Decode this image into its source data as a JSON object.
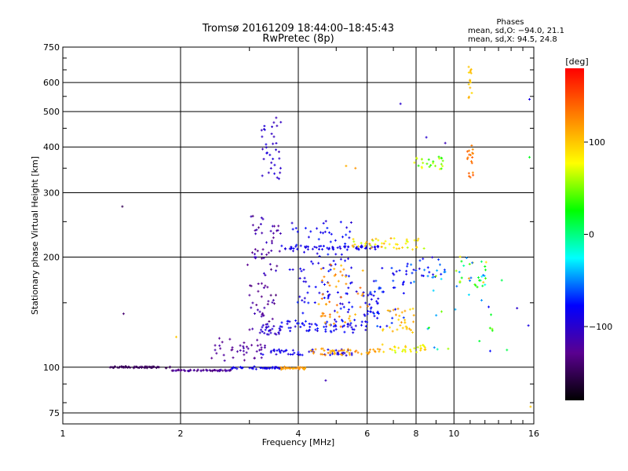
{
  "chart_data": {
    "type": "scatter",
    "title": "Tromsø 20161209 18:44:00–18:45:43",
    "subtitle": "RwPretec (8p)",
    "xlabel": "Frequency [MHz]",
    "ylabel": "Stationary phase Virtual Height [km]",
    "x_scale": "log",
    "y_scale": "log",
    "xlim": [
      1,
      16
    ],
    "ylim": [
      70,
      750
    ],
    "x_ticks": [
      1,
      2,
      4,
      6,
      8,
      10,
      16
    ],
    "x_tick_labels": [
      "1",
      "2",
      "4",
      "6",
      "8",
      "10",
      "16"
    ],
    "y_ticks": [
      75,
      100,
      200,
      300,
      400,
      500,
      600,
      750
    ],
    "y_tick_labels": [
      "75",
      "100",
      "200",
      "300",
      "400",
      "500",
      "600",
      "750"
    ],
    "grid": true,
    "stats": {
      "heading": "Phases",
      "line_o": "mean, sd,O: −94.0, 21.1",
      "line_x": "mean, sd,X:  94.5, 24.8"
    },
    "colorbar": {
      "label": "[deg]",
      "range": [
        -180,
        180
      ],
      "ticks": [
        100,
        0,
        -100
      ],
      "tick_labels": [
        "100",
        "0",
        "−100"
      ],
      "colors": [
        "#000000",
        "#5a0090",
        "#0000ff",
        "#00ffff",
        "#00ff00",
        "#ffff00",
        "#ff8000",
        "#ff0000"
      ]
    },
    "traces": [
      {
        "f": [
          1.3,
          1.9
        ],
        "h": [
          100,
          100
        ],
        "phase": [
          -145,
          -150
        ],
        "n": 70,
        "spread": 0.01
      },
      {
        "f": [
          1.9,
          2.7
        ],
        "h": [
          98,
          98
        ],
        "phase": [
          -140,
          -110
        ],
        "n": 60,
        "spread": 0.008
      },
      {
        "f": [
          2.7,
          3.6
        ],
        "h": [
          99,
          100
        ],
        "phase": [
          -95,
          -80
        ],
        "n": 40,
        "spread": 0.01
      },
      {
        "f": [
          3.6,
          4.2
        ],
        "h": [
          99,
          100
        ],
        "phase": [
          110,
          125
        ],
        "n": 30,
        "spread": 0.01
      },
      {
        "f": [
          2.4,
          3.3
        ],
        "h": [
          105,
          120
        ],
        "phase": [
          -130,
          -115
        ],
        "n": 40,
        "spread": 0.02
      },
      {
        "f": [
          3.0,
          3.5
        ],
        "h": [
          125,
          170
        ],
        "phase": [
          -140,
          -110
        ],
        "n": 35,
        "spread": 0.03
      },
      {
        "f": [
          3.2,
          3.6
        ],
        "h": [
          120,
          130
        ],
        "phase": [
          -110,
          -90
        ],
        "n": 25,
        "spread": 0.02
      },
      {
        "f": [
          3.0,
          3.6
        ],
        "h": [
          180,
          260
        ],
        "phase": [
          -140,
          -100
        ],
        "n": 45,
        "spread": 0.04
      },
      {
        "f": [
          3.2,
          3.6
        ],
        "h": [
          330,
          480
        ],
        "phase": [
          -110,
          -90
        ],
        "n": 35,
        "spread": 0.03
      },
      {
        "f": [
          3.6,
          6.0
        ],
        "h": [
          125,
          135
        ],
        "phase": [
          -100,
          -70
        ],
        "n": 70,
        "spread": 0.015
      },
      {
        "f": [
          4.0,
          6.5
        ],
        "h": [
          140,
          160
        ],
        "phase": [
          -100,
          -70
        ],
        "n": 50,
        "spread": 0.03
      },
      {
        "f": [
          3.8,
          5.5
        ],
        "h": [
          160,
          250
        ],
        "phase": [
          -100,
          -70
        ],
        "n": 70,
        "spread": 0.05
      },
      {
        "f": [
          3.6,
          6.5
        ],
        "h": [
          210,
          215
        ],
        "phase": [
          -95,
          -80
        ],
        "n": 60,
        "spread": 0.01
      },
      {
        "f": [
          3.1,
          5.5
        ],
        "h": [
          108,
          112
        ],
        "phase": [
          -100,
          -80
        ],
        "n": 50,
        "spread": 0.01
      },
      {
        "f": [
          4.3,
          6.5
        ],
        "h": [
          108,
          112
        ],
        "phase": [
          105,
          130
        ],
        "n": 45,
        "spread": 0.01
      },
      {
        "f": [
          6.5,
          8.5
        ],
        "h": [
          110,
          115
        ],
        "phase": [
          60,
          110
        ],
        "n": 30,
        "spread": 0.01
      },
      {
        "f": [
          4.5,
          6.0
        ],
        "h": [
          130,
          190
        ],
        "phase": [
          100,
          140
        ],
        "n": 50,
        "spread": 0.04
      },
      {
        "f": [
          6.0,
          7.5
        ],
        "h": [
          130,
          190
        ],
        "phase": [
          -90,
          -60
        ],
        "n": 40,
        "spread": 0.04
      },
      {
        "f": [
          6.5,
          8.0
        ],
        "h": [
          125,
          145
        ],
        "phase": [
          90,
          120
        ],
        "n": 30,
        "spread": 0.02
      },
      {
        "f": [
          5.5,
          8.5
        ],
        "h": [
          210,
          225
        ],
        "phase": [
          60,
          120
        ],
        "n": 45,
        "spread": 0.015
      },
      {
        "f": [
          7.5,
          9.5
        ],
        "h": [
          170,
          200
        ],
        "phase": [
          -100,
          -40
        ],
        "n": 30,
        "spread": 0.03
      },
      {
        "f": [
          7.8,
          9.5
        ],
        "h": [
          350,
          380
        ],
        "phase": [
          30,
          80
        ],
        "n": 25,
        "spread": 0.015
      },
      {
        "f": [
          10.0,
          12.0
        ],
        "h": [
          165,
          200
        ],
        "phase": [
          -60,
          120
        ],
        "n": 30,
        "spread": 0.04
      },
      {
        "f": [
          10.8,
          11.2
        ],
        "h": [
          330,
          420
        ],
        "phase": [
          120,
          150
        ],
        "n": 18,
        "spread": 0.01
      },
      {
        "f": [
          10.9,
          11.1
        ],
        "h": [
          540,
          660
        ],
        "phase": [
          90,
          110
        ],
        "n": 14,
        "spread": 0.01
      },
      {
        "f": [
          8.5,
          14.0
        ],
        "h": [
          110,
          180
        ],
        "phase": [
          -80,
          60
        ],
        "n": 25,
        "spread": 0.06
      }
    ],
    "points": [
      {
        "f": 1.42,
        "h": 275,
        "phase": -150
      },
      {
        "f": 1.43,
        "h": 140,
        "phase": -140
      },
      {
        "f": 1.95,
        "h": 121,
        "phase": 100
      },
      {
        "f": 7.3,
        "h": 525,
        "phase": -100
      },
      {
        "f": 8.5,
        "h": 425,
        "phase": -100
      },
      {
        "f": 9.5,
        "h": 410,
        "phase": -110
      },
      {
        "f": 15.6,
        "h": 540,
        "phase": -90
      },
      {
        "f": 15.6,
        "h": 375,
        "phase": 20
      },
      {
        "f": 15.7,
        "h": 78,
        "phase": 100
      },
      {
        "f": 15.5,
        "h": 130,
        "phase": -90
      },
      {
        "f": 14.5,
        "h": 145,
        "phase": -100
      },
      {
        "f": 4.7,
        "h": 92,
        "phase": -110
      },
      {
        "f": 5.3,
        "h": 355,
        "phase": 110
      },
      {
        "f": 5.6,
        "h": 350,
        "phase": 120
      }
    ]
  }
}
